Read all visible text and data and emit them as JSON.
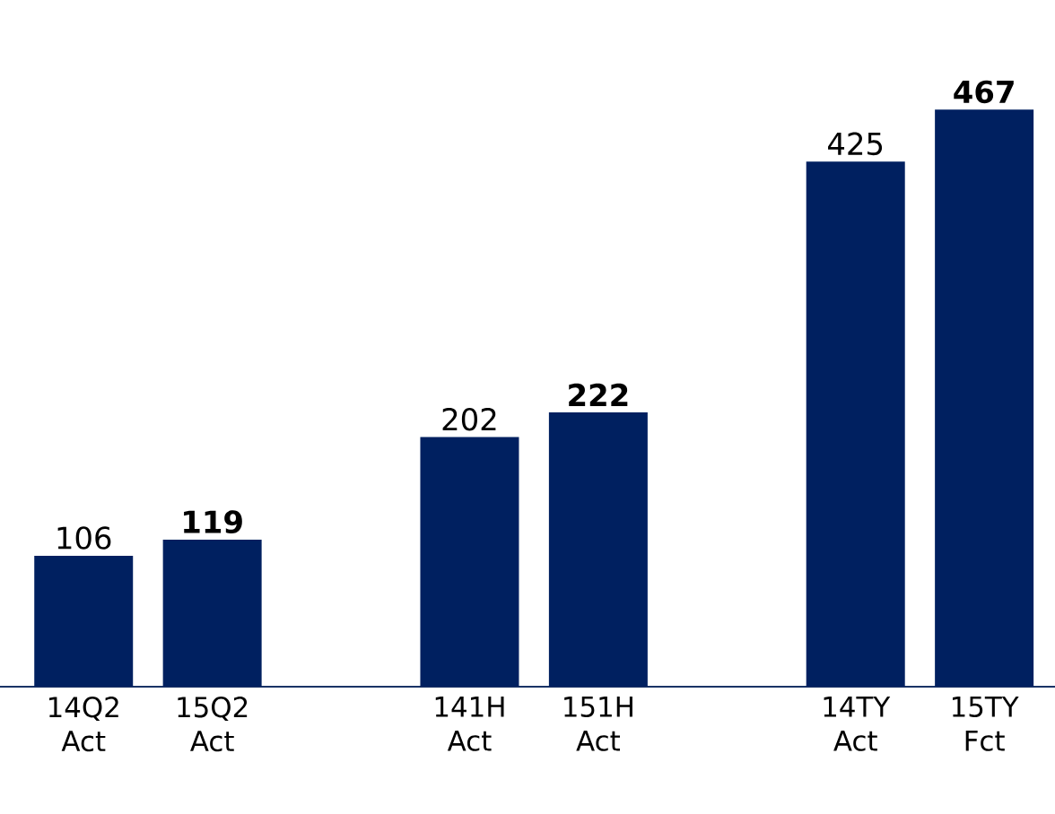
{
  "chart_data": {
    "type": "bar",
    "categories": [
      "14Q2 Act",
      "15Q2 Act",
      null,
      "141H Act",
      "151H Act",
      null,
      "14TY Act",
      "15TY Fct"
    ],
    "values": [
      106,
      119,
      null,
      202,
      222,
      null,
      425,
      467
    ],
    "value_labels": [
      "106",
      "**119**",
      null,
      "202",
      "**222**",
      null,
      "425",
      "**467**"
    ],
    "color": "#002060"
  }
}
